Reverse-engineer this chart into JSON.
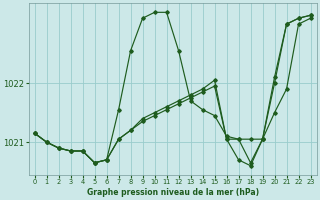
{
  "xlabel": "Graphe pression niveau de la mer (hPa)",
  "ylim": [
    1020.45,
    1023.35
  ],
  "xlim": [
    -0.5,
    23.5
  ],
  "yticks": [
    1021,
    1022
  ],
  "xticks": [
    0,
    1,
    2,
    3,
    4,
    5,
    6,
    7,
    8,
    9,
    10,
    11,
    12,
    13,
    14,
    15,
    16,
    17,
    18,
    19,
    20,
    21,
    22,
    23
  ],
  "background_color": "#cce8e8",
  "grid_color": "#99cccc",
  "line_color": "#1e5c1e",
  "series": [
    [
      1021.15,
      1021.0,
      1020.9,
      1020.85,
      1020.85,
      1020.65,
      1020.7,
      1021.55,
      1022.55,
      1023.1,
      1023.2,
      1023.2,
      1022.55,
      1021.7,
      1021.55,
      1021.45,
      1021.1,
      1021.05,
      1020.65,
      1021.05,
      1022.0,
      1023.0,
      1023.1,
      1023.15
    ],
    [
      1021.15,
      1021.0,
      1020.9,
      1020.85,
      1020.85,
      1020.65,
      1020.7,
      1021.05,
      1021.2,
      1021.4,
      1021.5,
      1021.6,
      1021.7,
      1021.8,
      1021.9,
      1022.05,
      1021.05,
      1021.05,
      1021.05,
      1021.05,
      1021.5,
      1021.9,
      1023.0,
      1023.1
    ],
    [
      1021.15,
      1021.0,
      1020.9,
      1020.85,
      1020.85,
      1020.65,
      1020.7,
      1021.05,
      1021.2,
      1021.35,
      1021.45,
      1021.55,
      1021.65,
      1021.75,
      1021.85,
      1021.95,
      1021.05,
      1020.7,
      1020.6,
      1021.05,
      1022.1,
      1023.0,
      1023.1,
      1023.15
    ]
  ]
}
